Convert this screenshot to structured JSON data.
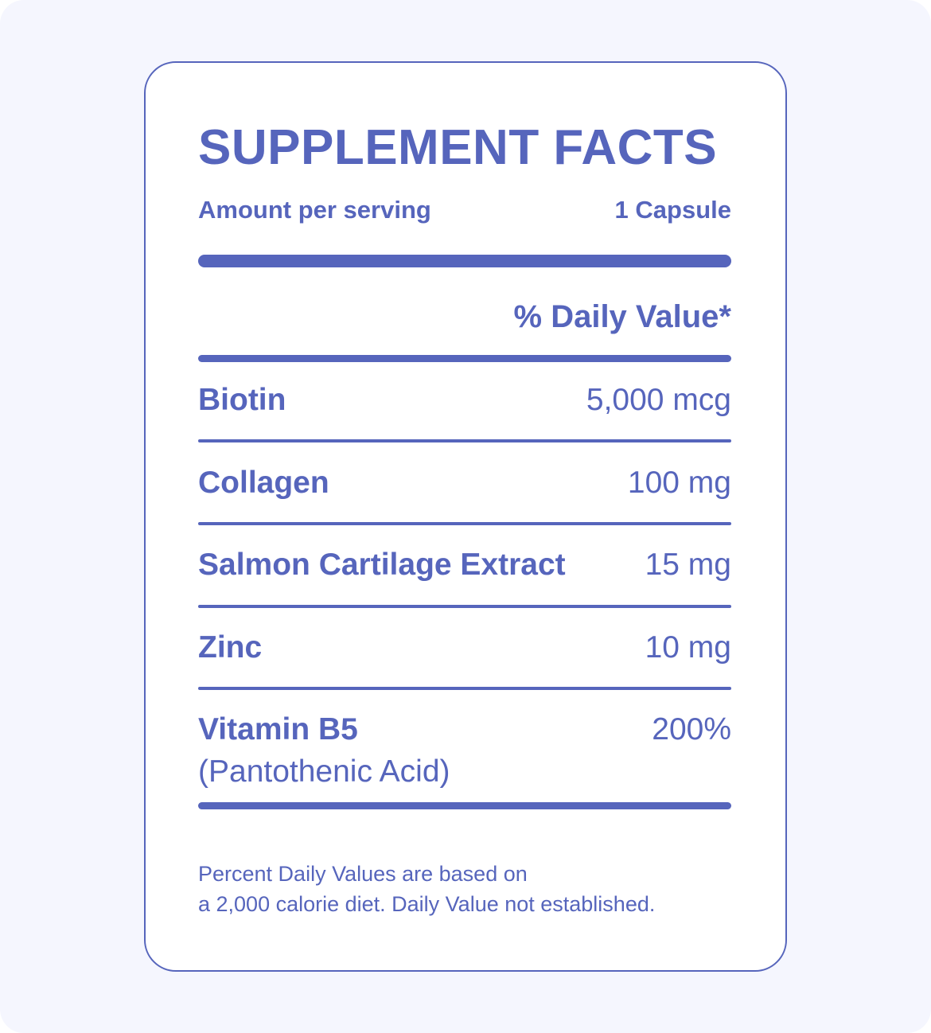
{
  "label": {
    "title": "SUPPLEMENT FACTS",
    "serving_label": "Amount per serving",
    "serving_size": "1 Capsule",
    "daily_value_header": "% Daily Value*",
    "nutrients": [
      {
        "name": "Biotin",
        "amount": "5,000 mcg"
      },
      {
        "name": "Collagen",
        "amount": "100 mg"
      },
      {
        "name": "Salmon Cartilage Extract",
        "amount": "15 mg"
      },
      {
        "name": "Zinc",
        "amount": "10 mg"
      },
      {
        "name": "Vitamin B5",
        "subname": "(Pantothenic Acid)",
        "amount": "200%"
      }
    ],
    "footnote_line1": "Percent Daily Values are based on",
    "footnote_line2": "a 2,000 calorie diet. Daily Value not established."
  },
  "colors": {
    "accent": "#5665BC",
    "background": "#F5F6FE",
    "card": "#FFFFFF"
  }
}
